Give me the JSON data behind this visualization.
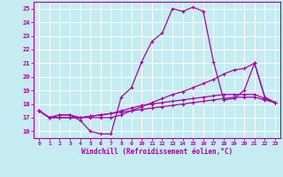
{
  "xlabel": "Windchill (Refroidissement éolien,°C)",
  "bg_color": "#c5ecf0",
  "grid_color": "#aadddd",
  "line_color": "#aa00aa",
  "markersize": 2.5,
  "linewidth": 0.9,
  "xlim": [
    -0.5,
    23.5
  ],
  "ylim": [
    15.5,
    25.5
  ],
  "xticks": [
    0,
    1,
    2,
    3,
    4,
    5,
    6,
    7,
    8,
    9,
    10,
    11,
    12,
    13,
    14,
    15,
    16,
    17,
    18,
    19,
    20,
    21,
    22,
    23
  ],
  "yticks": [
    16,
    17,
    18,
    19,
    20,
    21,
    22,
    23,
    24,
    25
  ],
  "series": [
    [
      17.5,
      17.0,
      17.2,
      17.2,
      16.8,
      16.0,
      15.8,
      15.8,
      18.5,
      19.2,
      21.1,
      22.6,
      23.2,
      25.0,
      24.8,
      25.1,
      24.8,
      21.1,
      18.3,
      18.4,
      19.0,
      21.0,
      18.5,
      18.1
    ],
    [
      17.5,
      17.0,
      17.2,
      17.2,
      17.0,
      17.0,
      17.0,
      17.0,
      17.2,
      17.5,
      17.8,
      18.1,
      18.4,
      18.7,
      18.9,
      19.2,
      19.5,
      19.8,
      20.2,
      20.5,
      20.6,
      21.0,
      18.5,
      18.1
    ],
    [
      17.5,
      17.0,
      17.0,
      17.0,
      17.0,
      17.1,
      17.2,
      17.3,
      17.5,
      17.7,
      17.9,
      18.0,
      18.1,
      18.2,
      18.3,
      18.4,
      18.5,
      18.6,
      18.7,
      18.7,
      18.7,
      18.7,
      18.4,
      18.1
    ],
    [
      17.5,
      17.0,
      17.0,
      17.0,
      17.0,
      17.1,
      17.2,
      17.3,
      17.4,
      17.5,
      17.6,
      17.7,
      17.8,
      17.9,
      18.0,
      18.1,
      18.2,
      18.3,
      18.4,
      18.5,
      18.5,
      18.5,
      18.3,
      18.1
    ]
  ]
}
